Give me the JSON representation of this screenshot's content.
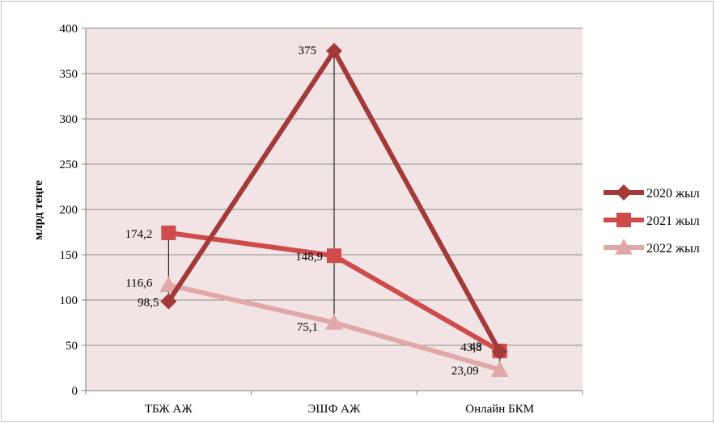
{
  "chart_data": {
    "type": "line",
    "title": "",
    "xlabel": "",
    "ylabel": "млрд теңге",
    "ylim": [
      0,
      400
    ],
    "yticks": [
      0,
      50,
      100,
      150,
      200,
      250,
      300,
      350,
      400
    ],
    "categories": [
      "ТБЖ АЖ",
      "ЭШФ АЖ",
      "Онлайн БКМ"
    ],
    "grid": true,
    "legend_position": "right",
    "plot_background": "#f2e4e4",
    "series": [
      {
        "name": "2020 жыл",
        "values": [
          98.5,
          375,
          43
        ],
        "labels": [
          "98,5",
          "375",
          "43"
        ],
        "color": "#a33a3a",
        "marker": "diamond"
      },
      {
        "name": "2021 жыл",
        "values": [
          174.2,
          148.9,
          43.8
        ],
        "labels": [
          "174,2",
          "148,9",
          "43,8"
        ],
        "color": "#cf4a4a",
        "marker": "square"
      },
      {
        "name": "2022 жыл",
        "values": [
          116.6,
          75.1,
          23.09
        ],
        "labels": [
          "116,6",
          "75,1",
          "23,09"
        ],
        "color": "#e0a8a8",
        "marker": "triangle"
      }
    ]
  }
}
